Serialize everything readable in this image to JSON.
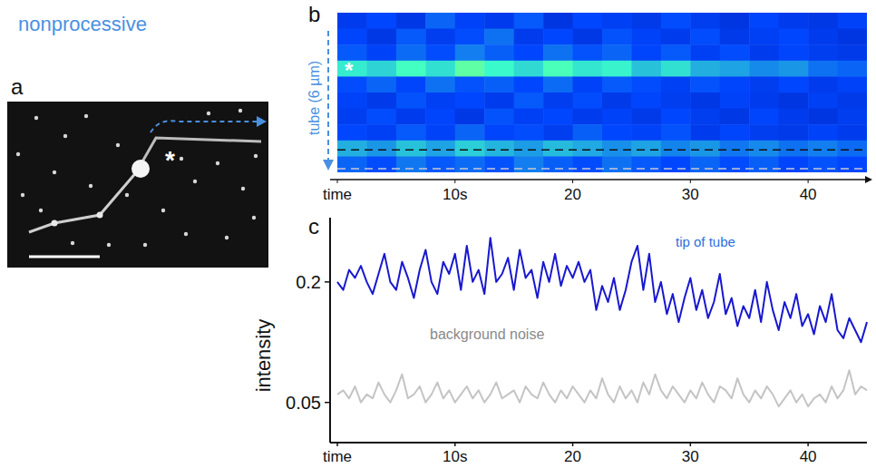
{
  "header": {
    "title": "nonprocessive"
  },
  "image_panel": {
    "panel_label": "a",
    "annotation": "*"
  },
  "chart_data": [
    {
      "type": "heatmap",
      "panel_label": "b",
      "y_label": "tube (6 µm)",
      "annotations": [
        "*"
      ],
      "xlim": [
        0,
        45
      ],
      "xticks": [
        {
          "value": 0,
          "label": "time"
        },
        {
          "value": 10,
          "label": "10s"
        },
        20,
        30,
        40
      ],
      "ylim": [
        0,
        6
      ],
      "color_range": [
        0,
        1
      ],
      "tick_labels": "x",
      "cells": [
        [
          0.3,
          0.35,
          0.28,
          0.4,
          0.33,
          0.3,
          0.38,
          0.27,
          0.35,
          0.32,
          0.29,
          0.36,
          0.31,
          0.27,
          0.34,
          0.3,
          0.28,
          0.33
        ],
        [
          0.34,
          0.28,
          0.38,
          0.31,
          0.36,
          0.42,
          0.3,
          0.35,
          0.28,
          0.37,
          0.33,
          0.3,
          0.36,
          0.29,
          0.32,
          0.35,
          0.3,
          0.27
        ],
        [
          0.38,
          0.33,
          0.41,
          0.36,
          0.44,
          0.39,
          0.35,
          0.42,
          0.37,
          0.4,
          0.34,
          0.38,
          0.32,
          0.36,
          0.3,
          0.34,
          0.31,
          0.29
        ],
        [
          0.62,
          0.58,
          0.66,
          0.6,
          0.7,
          0.64,
          0.59,
          0.67,
          0.61,
          0.63,
          0.55,
          0.6,
          0.52,
          0.5,
          0.46,
          0.48,
          0.42,
          0.4
        ],
        [
          0.36,
          0.4,
          0.34,
          0.42,
          0.37,
          0.39,
          0.35,
          0.41,
          0.33,
          0.38,
          0.36,
          0.32,
          0.37,
          0.34,
          0.31,
          0.35,
          0.3,
          0.33
        ],
        [
          0.33,
          0.29,
          0.37,
          0.32,
          0.35,
          0.3,
          0.38,
          0.31,
          0.36,
          0.29,
          0.34,
          0.31,
          0.28,
          0.33,
          0.3,
          0.27,
          0.32,
          0.29
        ],
        [
          0.31,
          0.36,
          0.3,
          0.34,
          0.28,
          0.37,
          0.32,
          0.35,
          0.3,
          0.33,
          0.29,
          0.35,
          0.31,
          0.28,
          0.34,
          0.3,
          0.27,
          0.31
        ],
        [
          0.35,
          0.32,
          0.38,
          0.33,
          0.4,
          0.34,
          0.36,
          0.31,
          0.39,
          0.35,
          0.33,
          0.37,
          0.3,
          0.34,
          0.31,
          0.29,
          0.33,
          0.3
        ],
        [
          0.52,
          0.48,
          0.55,
          0.5,
          0.57,
          0.53,
          0.49,
          0.54,
          0.51,
          0.47,
          0.5,
          0.45,
          0.48,
          0.43,
          0.46,
          0.42,
          0.44,
          0.41
        ],
        [
          0.4,
          0.36,
          0.43,
          0.38,
          0.41,
          0.37,
          0.44,
          0.39,
          0.36,
          0.42,
          0.38,
          0.35,
          0.4,
          0.36,
          0.39,
          0.34,
          0.37,
          0.35
        ]
      ]
    },
    {
      "type": "line",
      "panel_label": "c",
      "y_label": "intensity",
      "x": [
        0,
        0.5,
        1,
        1.5,
        2,
        2.5,
        3,
        3.5,
        4,
        4.5,
        5,
        5.5,
        6,
        6.5,
        7,
        7.5,
        8,
        8.5,
        9,
        9.5,
        10,
        10.5,
        11,
        11.5,
        12,
        12.5,
        13,
        13.5,
        14,
        14.5,
        15,
        15.5,
        16,
        16.5,
        17,
        17.5,
        18,
        18.5,
        19,
        19.5,
        20,
        20.5,
        21,
        21.5,
        22,
        22.5,
        23,
        23.5,
        24,
        24.5,
        25,
        25.5,
        26,
        26.5,
        27,
        27.5,
        28,
        28.5,
        29,
        29.5,
        30,
        30.5,
        31,
        31.5,
        32,
        32.5,
        33,
        33.5,
        34,
        34.5,
        35,
        35.5,
        36,
        36.5,
        37,
        37.5,
        38,
        38.5,
        39,
        39.5,
        40,
        40.5,
        41,
        41.5,
        42,
        42.5,
        43,
        43.5,
        44,
        44.5,
        45
      ],
      "xlim": [
        0,
        45
      ],
      "xticks": [
        {
          "value": 0,
          "label": "time"
        },
        {
          "value": 10,
          "label": "10s"
        },
        20,
        30,
        40
      ],
      "ylim": [
        0,
        0.28
      ],
      "yticks": [
        0.05,
        0.2
      ],
      "series": [
        {
          "name": "tip of tube",
          "color": "#1818d0",
          "values": [
            0.2,
            0.19,
            0.215,
            0.205,
            0.22,
            0.2,
            0.185,
            0.21,
            0.235,
            0.2,
            0.19,
            0.225,
            0.205,
            0.18,
            0.215,
            0.24,
            0.2,
            0.185,
            0.225,
            0.21,
            0.235,
            0.19,
            0.245,
            0.2,
            0.215,
            0.185,
            0.255,
            0.2,
            0.21,
            0.23,
            0.19,
            0.24,
            0.205,
            0.215,
            0.18,
            0.225,
            0.2,
            0.235,
            0.195,
            0.22,
            0.205,
            0.225,
            0.2,
            0.215,
            0.165,
            0.195,
            0.175,
            0.205,
            0.165,
            0.19,
            0.225,
            0.245,
            0.19,
            0.235,
            0.175,
            0.2,
            0.16,
            0.185,
            0.15,
            0.18,
            0.205,
            0.165,
            0.19,
            0.155,
            0.175,
            0.21,
            0.16,
            0.18,
            0.145,
            0.17,
            0.155,
            0.19,
            0.15,
            0.2,
            0.165,
            0.14,
            0.175,
            0.155,
            0.185,
            0.145,
            0.16,
            0.135,
            0.17,
            0.15,
            0.185,
            0.14,
            0.13,
            0.155,
            0.14,
            0.125,
            0.15
          ]
        },
        {
          "name": "background noise",
          "color": "#c4c4c4",
          "values": [
            0.06,
            0.065,
            0.055,
            0.07,
            0.05,
            0.06,
            0.055,
            0.075,
            0.06,
            0.05,
            0.065,
            0.085,
            0.055,
            0.06,
            0.07,
            0.05,
            0.06,
            0.075,
            0.055,
            0.065,
            0.05,
            0.06,
            0.07,
            0.055,
            0.065,
            0.05,
            0.06,
            0.075,
            0.055,
            0.06,
            0.065,
            0.05,
            0.07,
            0.06,
            0.055,
            0.075,
            0.06,
            0.05,
            0.065,
            0.055,
            0.07,
            0.06,
            0.05,
            0.065,
            0.055,
            0.08,
            0.06,
            0.05,
            0.07,
            0.055,
            0.065,
            0.05,
            0.075,
            0.06,
            0.085,
            0.065,
            0.055,
            0.07,
            0.06,
            0.05,
            0.065,
            0.055,
            0.075,
            0.06,
            0.05,
            0.07,
            0.065,
            0.055,
            0.08,
            0.06,
            0.05,
            0.065,
            0.055,
            0.07,
            0.06,
            0.045,
            0.055,
            0.065,
            0.05,
            0.06,
            0.045,
            0.055,
            0.06,
            0.05,
            0.07,
            0.055,
            0.065,
            0.09,
            0.06,
            0.07,
            0.065
          ]
        }
      ]
    }
  ]
}
